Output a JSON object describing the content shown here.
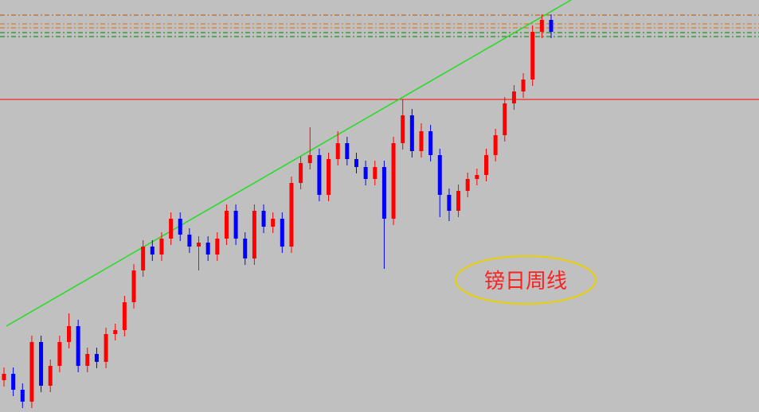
{
  "chart_data": {
    "type": "candlestick",
    "annotation": "镑日周线",
    "up_color": "#ff0000",
    "down_color": "#0000ff",
    "ylim": [
      0,
      518
    ],
    "open": [
      40,
      48,
      28,
      13,
      88,
      33,
      58,
      88,
      108,
      58,
      73,
      63,
      98,
      103,
      138,
      178,
      208,
      198,
      218,
      243,
      223,
      208,
      213,
      198,
      218,
      253,
      218,
      193,
      253,
      233,
      243,
      208,
      288,
      313,
      323,
      273,
      318,
      338,
      318,
      308,
      293,
      308,
      243,
      338,
      373,
      328,
      353,
      323,
      273,
      253,
      278,
      293,
      298,
      323,
      348,
      388,
      403,
      418,
      478,
      493
    ],
    "high": [
      56,
      56,
      36,
      96,
      96,
      66,
      96,
      124,
      116,
      81,
      81,
      106,
      111,
      146,
      186,
      216,
      216,
      226,
      251,
      251,
      231,
      221,
      221,
      226,
      261,
      261,
      226,
      261,
      261,
      251,
      251,
      296,
      321,
      358,
      331,
      326,
      353,
      346,
      326,
      316,
      316,
      316,
      346,
      393,
      381,
      363,
      361,
      331,
      281,
      286,
      301,
      306,
      331,
      356,
      396,
      411,
      426,
      486,
      500,
      500
    ],
    "low": [
      32,
      20,
      5,
      5,
      25,
      25,
      50,
      80,
      50,
      50,
      55,
      55,
      90,
      95,
      130,
      170,
      190,
      190,
      210,
      215,
      200,
      178,
      190,
      190,
      210,
      210,
      185,
      185,
      225,
      225,
      200,
      200,
      280,
      305,
      265,
      265,
      310,
      310,
      300,
      285,
      285,
      180,
      235,
      330,
      320,
      320,
      315,
      245,
      240,
      245,
      270,
      285,
      290,
      315,
      340,
      380,
      395,
      410,
      470,
      470
    ],
    "close": [
      48,
      28,
      13,
      88,
      33,
      58,
      88,
      108,
      58,
      73,
      63,
      98,
      103,
      138,
      178,
      208,
      198,
      218,
      243,
      223,
      208,
      213,
      198,
      218,
      253,
      218,
      193,
      253,
      233,
      243,
      208,
      288,
      313,
      323,
      273,
      318,
      338,
      318,
      308,
      293,
      308,
      243,
      338,
      373,
      328,
      353,
      323,
      273,
      253,
      278,
      293,
      298,
      323,
      348,
      388,
      403,
      418,
      478,
      493,
      478
    ]
  }
}
